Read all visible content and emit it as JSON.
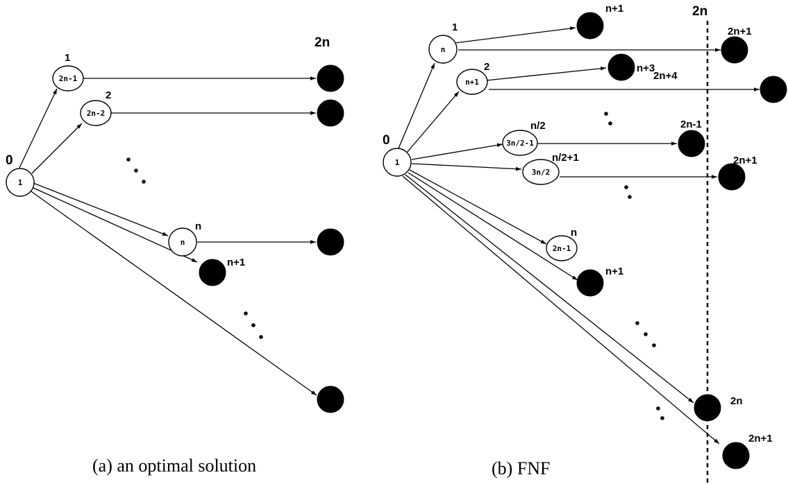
{
  "panel_a": {
    "caption": "(a) an optimal solution",
    "label_0": "0",
    "label_2n": "2n",
    "root_inner": "1",
    "node1": {
      "label": "1",
      "inner": "2n-1"
    },
    "node2": {
      "label": "2",
      "inner": "2n-2"
    },
    "noden": {
      "label": "n",
      "inner": "n"
    },
    "label_n_plus_1": "n+1"
  },
  "panel_b": {
    "caption": "(b) FNF",
    "label_0": "0",
    "label_2n_top": "2n",
    "root_inner": "1",
    "node1": {
      "label": "1",
      "inner": "n"
    },
    "node2": {
      "label": "2",
      "inner": "n+1"
    },
    "node_half": {
      "label": "n/2",
      "inner": "3n/2-1"
    },
    "node_half1": {
      "label": "n/2+1",
      "inner": "3n/2"
    },
    "noden": {
      "label": "n",
      "inner": "2n-1"
    },
    "lbl_n_plus_1_top": "n+1",
    "lbl_2n_plus_1_a": "2n+1",
    "lbl_n_plus_3": "n+3",
    "lbl_2n_plus_4": "2n+4",
    "lbl_2n_minus_1": "2n-1",
    "lbl_2n_plus_1_b": "2n+1",
    "lbl_n_plus_1_mid": "n+1",
    "lbl_2n_bottom": "2n",
    "lbl_2n_plus_1_c": "2n+1"
  }
}
